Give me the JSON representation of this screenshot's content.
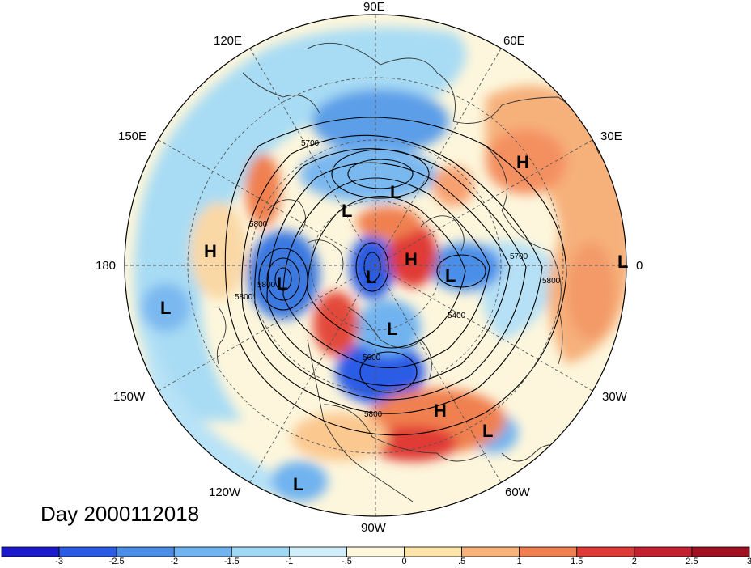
{
  "title": "Day 2000112018",
  "longitude_labels": {
    "east90": "90E",
    "east120": "120E",
    "east60": "60E",
    "east150": "150E",
    "east30": "30E",
    "dateline": "180",
    "prime": "0",
    "west150": "150W",
    "west30": "30W",
    "west120": "120W",
    "west60": "60W",
    "west90": "90W"
  },
  "contour_labels": [
    "5700",
    "5800",
    "5800",
    "5800",
    "5400",
    "5600",
    "5800",
    "5700",
    "5800"
  ],
  "pressure_centers": [
    {
      "label": "H",
      "kind": "high"
    },
    {
      "label": "H",
      "kind": "high"
    },
    {
      "label": "H",
      "kind": "high"
    },
    {
      "label": "H",
      "kind": "high"
    },
    {
      "label": "L",
      "kind": "low"
    },
    {
      "label": "L",
      "kind": "low"
    },
    {
      "label": "L",
      "kind": "low"
    },
    {
      "label": "L",
      "kind": "low"
    },
    {
      "label": "L",
      "kind": "low"
    },
    {
      "label": "L",
      "kind": "low"
    },
    {
      "label": "L",
      "kind": "low"
    },
    {
      "label": "L",
      "kind": "low"
    },
    {
      "label": "L",
      "kind": "low"
    }
  ],
  "colorbar": {
    "colors": [
      "#1a1acc",
      "#2b5ce6",
      "#4a8ee8",
      "#6fb3f0",
      "#9fd8f5",
      "#d0eefa",
      "#fff8dc",
      "#fde4a8",
      "#f9b27a",
      "#f08050",
      "#e03a36",
      "#c42030",
      "#a01020"
    ],
    "labels": [
      "-3",
      "-2.5",
      "-2",
      "-1.5",
      "-1",
      "-.5",
      "0",
      ".5",
      "1",
      "1.5",
      "2",
      "2.5",
      "3"
    ]
  }
}
